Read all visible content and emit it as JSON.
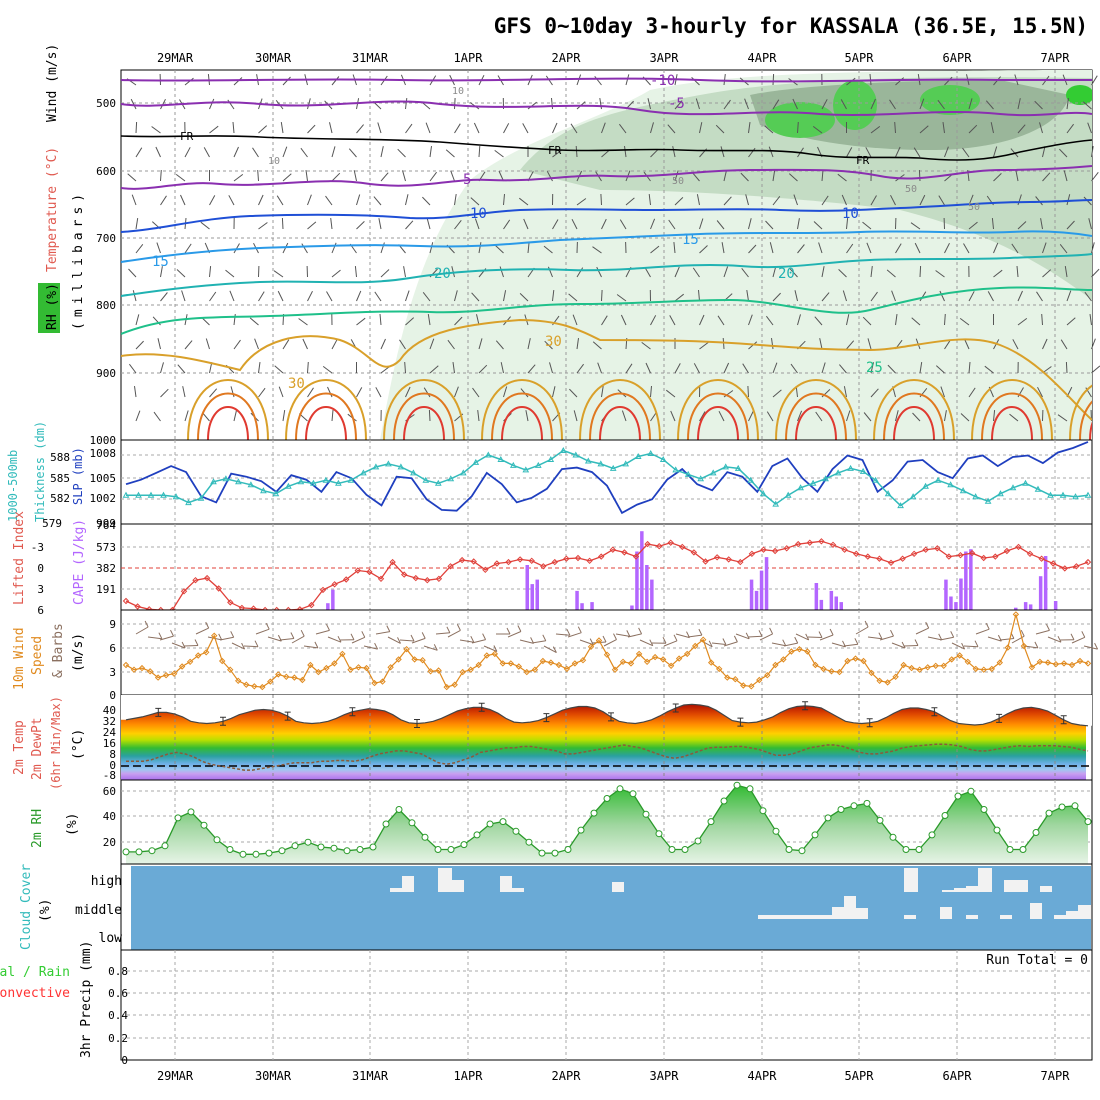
{
  "title": "GFS 0~10day 3-hourly for KASSALA (36.5E, 15.5N)",
  "dates": [
    "29MAR",
    "30MAR",
    "31MAR",
    "1APR",
    "2APR",
    "3APR",
    "4APR",
    "5APR",
    "6APR",
    "7APR"
  ],
  "colors": {
    "temperature": "#7f7f7f",
    "freezing": "#000000",
    "rh_green": "#33cc33",
    "slp": "#1f3fbf",
    "thickness": "#33bbbb",
    "cape": "#b366ff",
    "lifted_index": "#e0403a",
    "wind_speed": "#e08a1e",
    "wind_barb": "#8b7060",
    "rh2m": "#2a9a2a",
    "cloud_bg": "#6aaad6",
    "precip_total": "#33cc33",
    "precip_convective": "#ff3333"
  },
  "chart_data": [
    {
      "type": "contour",
      "panel": "upper_air",
      "ylabel_parts": [
        "RH (%)",
        "Temperature (°C)",
        "Wind (m/s)",
        "(millibars)"
      ],
      "y_ticks": [
        500,
        600,
        700,
        800,
        900,
        1000
      ],
      "ylim": [
        450,
        1000
      ],
      "temperature_labels": [
        "-10",
        "-5",
        "FR",
        "5",
        "10",
        "15",
        "20",
        "25",
        "30"
      ],
      "rh_labels": [
        "10",
        "50"
      ],
      "grid": true
    },
    {
      "type": "line",
      "panel": "slp_thickness",
      "ylabel_parts": [
        "1000-500mb",
        "Thickness (dm)",
        "SLP (mb)"
      ],
      "left_ticks": [
        "579",
        "582",
        "585",
        "588"
      ],
      "right_ticks": [
        "999",
        "1002",
        "1005",
        "1008"
      ],
      "series": [
        {
          "name": "SLP",
          "axis": "right",
          "values": [
            1004.0,
            1004.6,
            1005.5,
            1006.4,
            1005.6,
            1002.4,
            1001.6,
            1005.4,
            1005.0,
            1004.4,
            1003.0,
            1005.2,
            1004.6,
            1003.0,
            1005.6,
            1004.8,
            1002.6,
            1001.2,
            1005.0,
            1004.8,
            1002.0,
            1000.6,
            1000.5,
            1002.4,
            1005.5,
            1004.0,
            1001.6,
            1002.2,
            1003.4,
            1006.0,
            1006.2,
            1005.6,
            1003.8,
            1000.2,
            1001.3,
            1002.0,
            1004.6,
            1006.0,
            1004.0,
            1003.2,
            1005.6,
            1005.0,
            1003.0,
            1006.4,
            1007.4,
            1004.8,
            1003.0,
            1006.0,
            1007.8,
            1007.2,
            1003.0,
            1004.5,
            1007.0,
            1007.2,
            1005.6,
            1004.8,
            1007.4,
            1007.8,
            1006.4,
            1007.6,
            1007.8,
            1006.8,
            1008.2,
            1008.8,
            1009.6
          ]
        },
        {
          "name": "Thickness",
          "axis": "left",
          "values": [
            582.6,
            582.6,
            582.6,
            582.6,
            582.4,
            581.6,
            582.2,
            584.4,
            584.8,
            584.4,
            584.0,
            583.2,
            582.8,
            583.8,
            584.4,
            584.2,
            584.6,
            584.2,
            584.6,
            585.6,
            586.4,
            586.8,
            586.4,
            585.6,
            584.6,
            584.2,
            584.8,
            585.6,
            587.0,
            588.0,
            587.4,
            586.6,
            586.0,
            586.6,
            587.4,
            588.6,
            588.0,
            587.2,
            586.8,
            586.2,
            586.8,
            587.8,
            588.2,
            587.4,
            586.0,
            585.4,
            584.8,
            585.6,
            586.4,
            586.2,
            584.6,
            582.8,
            581.4,
            582.6,
            583.6,
            584.2,
            584.8,
            585.6,
            586.2,
            585.8,
            584.6,
            582.8,
            581.2,
            582.4,
            583.8,
            584.6,
            584.0,
            583.2,
            582.4,
            581.8,
            582.8,
            583.6,
            584.2,
            583.4,
            582.6,
            582.6,
            582.4,
            582.6
          ]
        }
      ],
      "grid": true
    },
    {
      "type": "bar",
      "panel": "cape_lifted_index",
      "ylabel_parts": [
        "Lifted Index",
        "CAPE (J/kg)"
      ],
      "left_ticks": [
        "-3",
        "0",
        "3",
        "6"
      ],
      "right_ticks": [
        "191",
        "382",
        "573",
        "764"
      ],
      "series": [
        {
          "name": "CAPE",
          "axis": "right",
          "values": [
            0,
            0,
            0,
            0,
            0,
            0,
            0,
            0,
            0,
            0,
            0,
            0,
            0,
            0,
            0,
            0,
            0,
            0,
            0,
            0,
            0,
            0,
            0,
            0,
            0,
            0,
            0,
            0,
            0,
            0,
            0,
            0,
            0,
            0,
            0,
            0,
            0,
            0,
            0,
            0,
            60,
            180,
            0,
            0,
            0,
            0,
            0,
            0,
            0,
            0,
            0,
            0,
            0,
            0,
            0,
            0,
            0,
            0,
            0,
            0,
            0,
            0,
            0,
            0,
            0,
            0,
            0,
            0,
            0,
            0,
            0,
            0,
            0,
            0,
            0,
            0,
            0,
            0,
            0,
            0,
            400,
            230,
            270,
            0,
            0,
            0,
            0,
            0,
            0,
            0,
            170,
            60,
            0,
            70,
            0,
            0,
            0,
            0,
            0,
            0,
            0,
            40,
            520,
            700,
            400,
            270,
            0,
            0,
            0,
            0,
            0,
            0,
            0,
            0,
            0,
            0,
            0,
            0,
            0,
            0,
            0,
            0,
            0,
            0,
            0,
            270,
            170,
            350,
            470,
            0,
            0,
            0,
            0,
            0,
            0,
            0,
            0,
            0,
            240,
            90,
            0,
            170,
            120,
            70,
            0,
            0,
            0,
            0,
            0,
            0,
            0,
            0,
            0,
            0,
            0,
            0,
            0,
            0,
            0,
            0,
            0,
            0,
            0,
            0,
            270,
            120,
            70,
            280,
            520,
            540,
            0,
            0,
            0,
            0,
            0,
            0,
            0,
            0,
            20,
            0,
            70,
            50,
            0,
            300,
            480,
            0,
            80,
            0,
            0,
            0,
            0,
            0,
            0
          ]
        },
        {
          "name": "Lifted Index",
          "axis": "left",
          "values": [
            5.6,
            6.4,
            6.8,
            6.9,
            6.9,
            4.2,
            2.6,
            2.3,
            3.8,
            5.8,
            6.6,
            6.7,
            6.9,
            6.9,
            6.9,
            6.8,
            6.2,
            4.0,
            3.2,
            2.5,
            1.2,
            1.4,
            2.4,
            0.0,
            1.8,
            2.3,
            2.6,
            2.4,
            0.6,
            -0.3,
            -0.1,
            1.1,
            0.2,
            0.0,
            -0.4,
            -0.2,
            0.6,
            0.0,
            -0.5,
            -0.6,
            -0.2,
            -0.8,
            -1.8,
            -1.4,
            -0.8,
            -2.6,
            -2.3,
            -2.8,
            -2.2,
            -1.4,
            -0.1,
            -0.7,
            -0.4,
            0.0,
            -1.2,
            -1.8,
            -1.6,
            -2.0,
            -2.6,
            -2.8,
            -3.0,
            -2.5,
            -1.8,
            -1.2,
            -0.8,
            -0.5,
            0.1,
            -0.5,
            -1.2,
            -1.8,
            -2.0,
            -0.8,
            -1.0,
            -1.3,
            -0.6,
            -0.8,
            -1.6,
            -2.2,
            -1.2,
            -0.5,
            0.2,
            0.9,
            0.6,
            0.0
          ]
        }
      ],
      "grid": true
    },
    {
      "type": "line",
      "panel": "wind10m",
      "ylabel_parts": [
        "10m Wind",
        "Speed",
        "& Barbs",
        "(m/s)"
      ],
      "ticks": [
        "0",
        "3",
        "6",
        "9"
      ],
      "series": [
        {
          "name": "Speed",
          "values": [
            3.8,
            3.2,
            3.4,
            3.0,
            2.2,
            2.5,
            2.7,
            3.6,
            4.2,
            5.0,
            5.4,
            7.5,
            4.3,
            3.2,
            1.8,
            1.3,
            1.1,
            1.0,
            1.7,
            2.6,
            2.3,
            2.2,
            1.9,
            3.8,
            2.9,
            3.4,
            4.0,
            5.2,
            3.2,
            3.5,
            3.4,
            1.5,
            1.7,
            3.5,
            4.5,
            5.8,
            4.5,
            4.4,
            3.0,
            3.1,
            1.0,
            1.3,
            2.9,
            3.2,
            3.8,
            5.0,
            5.2,
            4.0,
            4.0,
            3.6,
            2.9,
            3.2,
            4.3,
            4.1,
            3.8,
            3.3,
            4.0,
            4.4,
            6.1,
            6.9,
            5.1,
            3.2,
            4.2,
            4.0,
            5.2,
            4.2,
            4.8,
            4.5,
            3.7,
            4.6,
            5.2,
            6.2,
            7.0,
            4.1,
            3.3,
            2.2,
            2.0,
            1.2,
            1.1,
            1.9,
            2.5,
            3.8,
            4.5,
            5.5,
            5.8,
            5.5,
            3.8,
            3.3,
            3.0,
            2.9,
            4.3,
            4.6,
            4.3,
            2.8,
            1.8,
            1.6,
            2.3,
            3.8,
            3.4,
            3.2,
            3.5,
            3.7,
            3.7,
            4.5,
            5.0,
            4.2,
            3.3,
            3.2,
            3.3,
            4.1,
            6.0,
            10.2,
            6.2,
            3.5,
            4.2,
            4.1,
            3.9,
            4.0,
            3.8,
            4.3,
            4.0
          ]
        }
      ],
      "grid": true
    },
    {
      "type": "area",
      "panel": "temp_dewpoint",
      "ylabel_parts": [
        "2m Temp",
        "2m DewPt",
        "(6hr Min/Max)",
        "(°C)"
      ],
      "ticks": [
        "-8",
        "0",
        "8",
        "16",
        "24",
        "32",
        "40"
      ],
      "series": [
        {
          "name": "Temp",
          "values": [
            32,
            33,
            34,
            35.5,
            37,
            37,
            36,
            34,
            31,
            30,
            29.5,
            30,
            31,
            33,
            35.5,
            37,
            38.5,
            39,
            38.5,
            37,
            34.5,
            31,
            30,
            29.5,
            30,
            31,
            33,
            35.5,
            37.5,
            38.5,
            39.5,
            39,
            38,
            35.5,
            32,
            30,
            29.5,
            30,
            31,
            33,
            35.5,
            38,
            39.5,
            40.5,
            40.5,
            39,
            36.5,
            33,
            30.5,
            30,
            30.5,
            31.5,
            33.5,
            36,
            38.5,
            40,
            41,
            41,
            40,
            37.5,
            34,
            31,
            30,
            29.5,
            30.5,
            32,
            34.5,
            37.5,
            40,
            42,
            42.5,
            42,
            41,
            38.5,
            35,
            31.5,
            30.5,
            30,
            30.5,
            32,
            34,
            37,
            39.5,
            41,
            41.5,
            41,
            40,
            37,
            34,
            31,
            30,
            29.5,
            30,
            31,
            33.5,
            36.5,
            39,
            40,
            40,
            39,
            37.5,
            34.5,
            31.5,
            29.5,
            29,
            28.5,
            29,
            30.5,
            33,
            36,
            38.5,
            40,
            40.5,
            39.5,
            38,
            35,
            32,
            29.5,
            28.5,
            28
          ]
        },
        {
          "name": "DewPt",
          "values": [
            4,
            4,
            4,
            5,
            7,
            9,
            10,
            9,
            7,
            4,
            2,
            1,
            0,
            -1,
            -2,
            -2,
            -1,
            0,
            1,
            2,
            3,
            3,
            3,
            4,
            4,
            4.5,
            4.5,
            4,
            5,
            7,
            9,
            10,
            11,
            11,
            10,
            9,
            6,
            3,
            2,
            3,
            5,
            7,
            10,
            11,
            12,
            13,
            13,
            14,
            14,
            13,
            12,
            11,
            9,
            9,
            10,
            11,
            12,
            13,
            14,
            15,
            14,
            13,
            11,
            9,
            7,
            6,
            7,
            9,
            11,
            13,
            13.5,
            13.5,
            14,
            14,
            13,
            12,
            10,
            8,
            8,
            9,
            11,
            13,
            14,
            15,
            15,
            14,
            12,
            10,
            9,
            9,
            10,
            11,
            13,
            14,
            14.5,
            15,
            15.5,
            15.5,
            15,
            14,
            12,
            11,
            11,
            12,
            13,
            14,
            14.5,
            14,
            14.5,
            14.5,
            14.5,
            14,
            13.5,
            12,
            11
          ]
        }
      ],
      "grid": true
    },
    {
      "type": "area",
      "panel": "rh2m",
      "ylabel_parts": [
        "2m RH",
        "(%)"
      ],
      "ticks": [
        "20",
        "40",
        "60"
      ],
      "series": [
        {
          "name": "RH",
          "values": [
            10,
            10,
            11,
            15,
            38,
            43,
            32,
            20,
            12,
            8,
            8,
            9,
            11,
            15,
            18,
            14,
            13,
            11,
            12,
            14,
            33,
            45,
            34,
            22,
            12,
            12,
            16,
            24,
            33,
            35,
            27,
            18,
            9,
            9,
            12,
            28,
            42,
            54,
            62,
            58,
            41,
            25,
            12,
            12,
            19,
            35,
            52,
            65,
            62,
            44,
            27,
            12,
            11,
            24,
            38,
            45,
            48,
            50,
            36,
            22,
            12,
            12,
            24,
            40,
            56,
            60,
            45,
            28,
            12,
            12,
            26,
            42,
            47,
            48,
            35
          ]
        }
      ],
      "grid": true
    },
    {
      "type": "heatmap",
      "panel": "cloud_cover",
      "ylabel_parts": [
        "Cloud Cover",
        "(%)"
      ],
      "levels": [
        "high",
        "middle",
        "low"
      ],
      "grid": false
    },
    {
      "type": "bar",
      "panel": "precip",
      "ylabel_parts": [
        "Total / Rain",
        "Convective",
        "3hr Precip (mm)"
      ],
      "ticks": [
        "0",
        "0.2",
        "0.4",
        "0.6",
        "0.8"
      ],
      "annotation": "Run Total = 0",
      "series": [
        {
          "name": "Total / Rain",
          "values": []
        },
        {
          "name": "Convective",
          "values": []
        }
      ],
      "grid": true
    }
  ]
}
